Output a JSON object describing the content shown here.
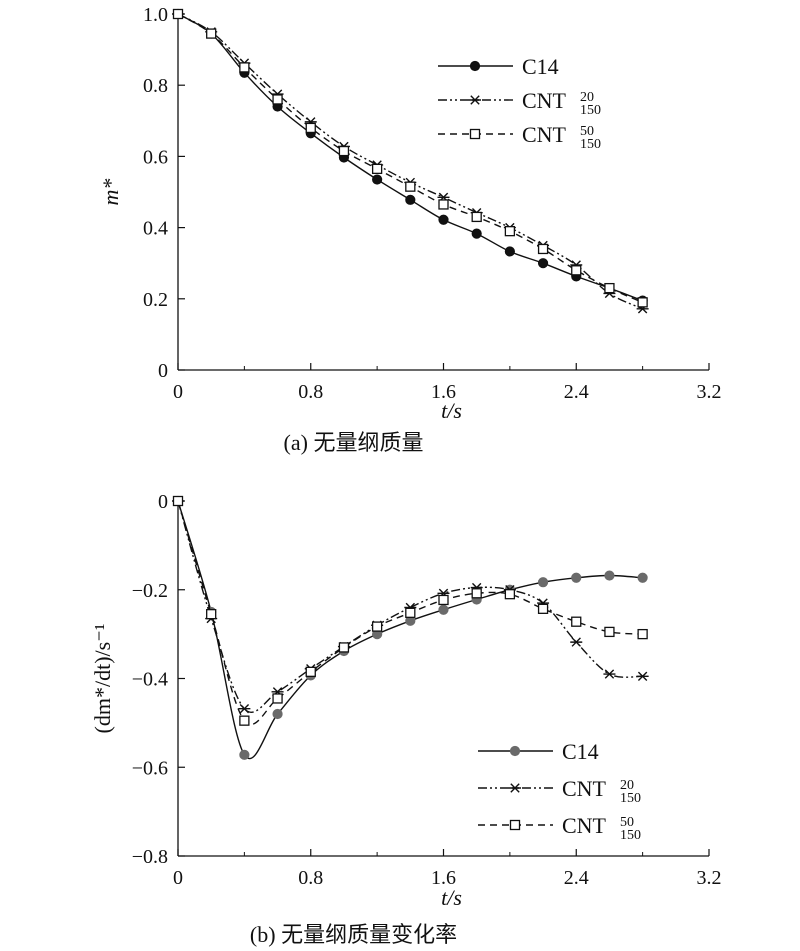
{
  "chart_data": [
    {
      "type": "line",
      "caption": "(a) 无量纲质量",
      "xlabel": "t/s",
      "ylabel": "m*",
      "xlim": [
        0,
        3.2
      ],
      "ylim": [
        0,
        1.0
      ],
      "xticks": [
        "0",
        "0.8",
        "1.6",
        "2.4",
        "3.2"
      ],
      "yticks": [
        "0",
        "0.2",
        "0.4",
        "0.6",
        "0.8",
        "1.0"
      ],
      "legend_position": "top-right",
      "x": [
        0,
        0.2,
        0.4,
        0.6,
        0.8,
        1.0,
        1.2,
        1.4,
        1.6,
        1.8,
        2.0,
        2.2,
        2.4,
        2.6,
        2.8
      ],
      "series": [
        {
          "name": "C14",
          "name_sup": "",
          "name_sub": "",
          "marker": "circle",
          "line": "solid",
          "values": [
            1.0,
            0.945,
            0.835,
            0.74,
            0.665,
            0.597,
            0.535,
            0.478,
            0.422,
            0.383,
            0.333,
            0.3,
            0.263,
            0.23,
            0.195
          ]
        },
        {
          "name": "CNT",
          "name_sup": "20",
          "name_sub": "150",
          "marker": "star",
          "line": "dashdotdot",
          "values": [
            1.0,
            0.95,
            0.862,
            0.775,
            0.697,
            0.628,
            0.576,
            0.527,
            0.485,
            0.442,
            0.4,
            0.35,
            0.295,
            0.215,
            0.172
          ]
        },
        {
          "name": "CNT",
          "name_sup": "50",
          "name_sub": "150",
          "marker": "square",
          "line": "dashed",
          "values": [
            1.0,
            0.945,
            0.85,
            0.76,
            0.68,
            0.615,
            0.565,
            0.515,
            0.465,
            0.43,
            0.39,
            0.34,
            0.28,
            0.23,
            0.19
          ]
        }
      ]
    },
    {
      "type": "line",
      "caption": "(b) 无量纲质量变化率",
      "xlabel": "t/s",
      "ylabel": "(dm*/dt)/s⁻¹",
      "xlim": [
        0,
        3.2
      ],
      "ylim": [
        -0.8,
        0
      ],
      "xticks": [
        "0",
        "0.8",
        "1.6",
        "2.4",
        "3.2"
      ],
      "yticks": [
        "0",
        "−0.2",
        "−0.4",
        "−0.6",
        "−0.8"
      ],
      "legend_position": "bottom-right",
      "x": [
        0,
        0.2,
        0.4,
        0.6,
        0.8,
        1.0,
        1.2,
        1.4,
        1.6,
        1.8,
        2.0,
        2.2,
        2.4,
        2.6,
        2.8
      ],
      "series": [
        {
          "name": "C14",
          "name_sup": "",
          "name_sub": "",
          "marker": "circle",
          "line": "solid",
          "values": [
            0,
            -0.25,
            -0.572,
            -0.48,
            -0.393,
            -0.338,
            -0.3,
            -0.27,
            -0.245,
            -0.222,
            -0.2,
            -0.183,
            -0.173,
            -0.168,
            -0.173
          ]
        },
        {
          "name": "CNT",
          "name_sup": "20",
          "name_sub": "150",
          "marker": "star",
          "line": "dashdotdot",
          "values": [
            0,
            -0.265,
            -0.468,
            -0.43,
            -0.378,
            -0.328,
            -0.28,
            -0.24,
            -0.208,
            -0.195,
            -0.2,
            -0.23,
            -0.318,
            -0.39,
            -0.395
          ]
        },
        {
          "name": "CNT",
          "name_sup": "50",
          "name_sub": "150",
          "marker": "square",
          "line": "dashed",
          "values": [
            0,
            -0.255,
            -0.495,
            -0.445,
            -0.385,
            -0.33,
            -0.283,
            -0.252,
            -0.223,
            -0.208,
            -0.21,
            -0.243,
            -0.272,
            -0.295,
            -0.3
          ]
        }
      ]
    }
  ]
}
